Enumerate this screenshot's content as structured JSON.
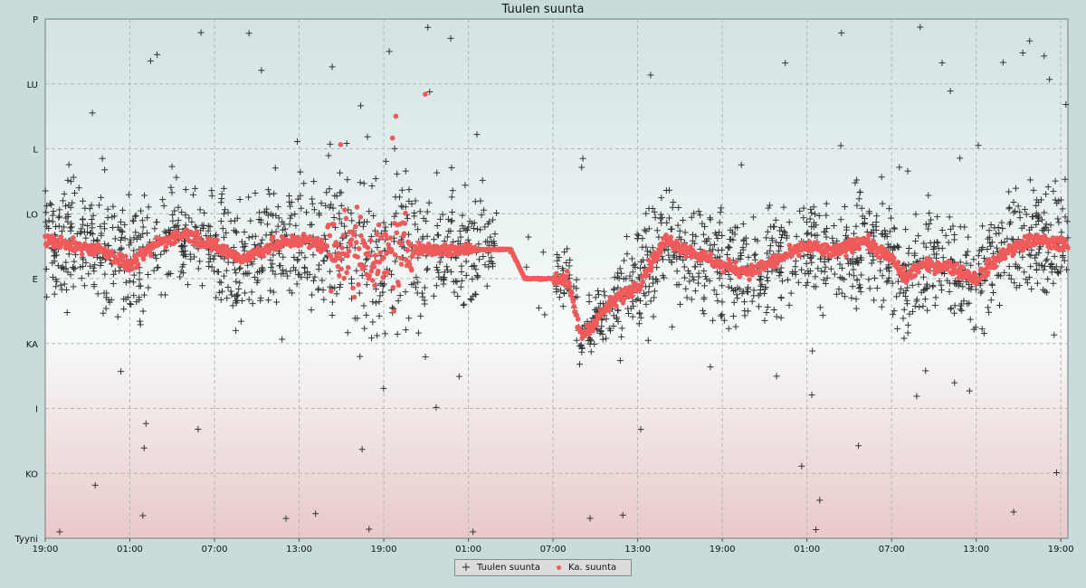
{
  "chart_data": {
    "type": "scatter",
    "title": "Tuulen suunta",
    "y_categories": [
      "Tyyni",
      "KO",
      "I",
      "KA",
      "E",
      "LO",
      "L",
      "LU",
      "P"
    ],
    "y_range": [
      0,
      8
    ],
    "x_tick_labels": [
      "19:00",
      "01:00",
      "07:00",
      "13:00",
      "19:00",
      "01:00",
      "07:00",
      "13:00",
      "19:00",
      "01:00",
      "07:00",
      "13:00",
      "19:00"
    ],
    "x_range_hours": [
      0,
      72.5
    ],
    "grid": true,
    "legend_position": "bottom-center",
    "series": [
      {
        "name": "Tuulen suunta",
        "marker": "plus",
        "color": "#333333",
        "note_values_estimated": true
      },
      {
        "name": "Ka. suunta",
        "marker": "dot",
        "color": "#f05a5a",
        "trend_x_hours": [
          0,
          2,
          4,
          6,
          8,
          10,
          12,
          14,
          16,
          18,
          20,
          24,
          25,
          26,
          28,
          30,
          33,
          34,
          35,
          36,
          37,
          38,
          40,
          42,
          44,
          46,
          48,
          50,
          52,
          54,
          56,
          58,
          60,
          61,
          62,
          64,
          66,
          68,
          70,
          72.5
        ],
        "trend_y": [
          4.6,
          4.5,
          4.45,
          4.2,
          4.55,
          4.7,
          4.5,
          4.3,
          4.5,
          4.6,
          4.5,
          4.35,
          4.4,
          4.45,
          4.45,
          4.45,
          4.45,
          4.0,
          4.0,
          4.0,
          4.0,
          3.1,
          3.6,
          3.9,
          4.6,
          4.4,
          4.2,
          4.1,
          4.3,
          4.5,
          4.4,
          4.6,
          4.3,
          4.0,
          4.2,
          4.2,
          4.0,
          4.4,
          4.6,
          4.5
        ]
      }
    ]
  },
  "colors": {
    "page_background": "#c9dcdc",
    "plot_gradient_top": "#d3e2e2",
    "plot_gradient_mid": "#f7fbfb",
    "plot_gradient_bottom": "#e9c9c9",
    "grid": "#b0b8b8",
    "raw_marker": "#333333",
    "avg_marker": "#f05a5a"
  }
}
